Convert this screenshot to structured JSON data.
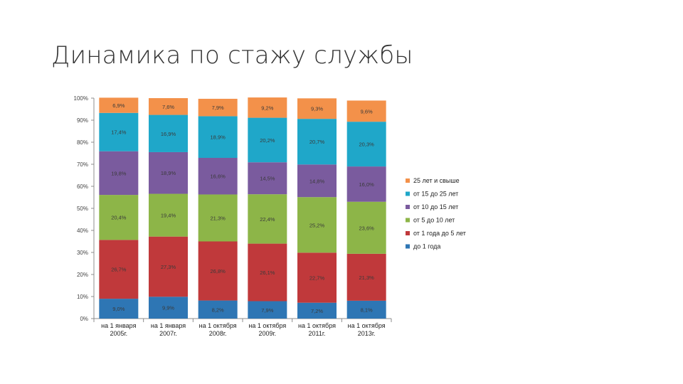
{
  "slide": {
    "title": "Динамика по стажу службы"
  },
  "chart_data": {
    "type": "bar",
    "stacked": true,
    "percent_stacked": true,
    "title": "",
    "xlabel": "",
    "ylabel": "",
    "ylim": [
      0,
      100
    ],
    "yticks": [
      "0%",
      "10%",
      "20%",
      "30%",
      "40%",
      "50%",
      "60%",
      "70%",
      "80%",
      "90%",
      "100%"
    ],
    "grid": false,
    "legend_position": "right",
    "categories": [
      [
        "на 1 января",
        "2005г."
      ],
      [
        "на 1 января",
        "2007г."
      ],
      [
        "на 1 октября",
        "2008г."
      ],
      [
        "на 1 октября",
        "2009г."
      ],
      [
        "на 1 октября",
        "2011г."
      ],
      [
        "на 1 октября",
        "2013г."
      ]
    ],
    "series": [
      {
        "name": "до 1 года",
        "color": "#2e76b4",
        "values": [
          9.0,
          9.9,
          8.2,
          7.9,
          7.2,
          8.1
        ],
        "labels": [
          "9,0%",
          "9,9%",
          "8,2%",
          "7,9%",
          "7,2%",
          "8,1%"
        ]
      },
      {
        "name": "от 1 года до 5 лет",
        "color": "#c0393b",
        "values": [
          26.7,
          27.3,
          26.8,
          26.1,
          22.7,
          21.3
        ],
        "labels": [
          "26,7%",
          "27,3%",
          "26,8%",
          "26,1%",
          "22,7%",
          "21,3%"
        ]
      },
      {
        "name": "от 5 до 10 лет",
        "color": "#8db548",
        "values": [
          20.4,
          19.4,
          21.3,
          22.4,
          25.2,
          23.6
        ],
        "labels": [
          "20,4%",
          "19,4%",
          "21,3%",
          "22,4%",
          "25,2%",
          "23,6%"
        ]
      },
      {
        "name": "от 10 до 15 лет",
        "color": "#7a5b9e",
        "values": [
          19.8,
          18.9,
          16.6,
          14.5,
          14.8,
          16.0
        ],
        "labels": [
          "19,8%",
          "18,9%",
          "16,6%",
          "14,5%",
          "14,8%",
          "16,0%"
        ]
      },
      {
        "name": "от 15 до 25 лет",
        "color": "#1fa7c9",
        "values": [
          17.4,
          16.9,
          18.9,
          20.2,
          20.7,
          20.3
        ],
        "labels": [
          "17,4%",
          "16,9%",
          "18,9%",
          "20,2%",
          "20,7%",
          "20,3%"
        ]
      },
      {
        "name": "25 лет и свыше",
        "color": "#f3914a",
        "values": [
          6.9,
          7.6,
          7.9,
          9.2,
          9.3,
          9.6
        ],
        "labels": [
          "6,9%",
          "7,6%",
          "7,9%",
          "9,2%",
          "9,3%",
          "9,6%"
        ]
      }
    ]
  }
}
